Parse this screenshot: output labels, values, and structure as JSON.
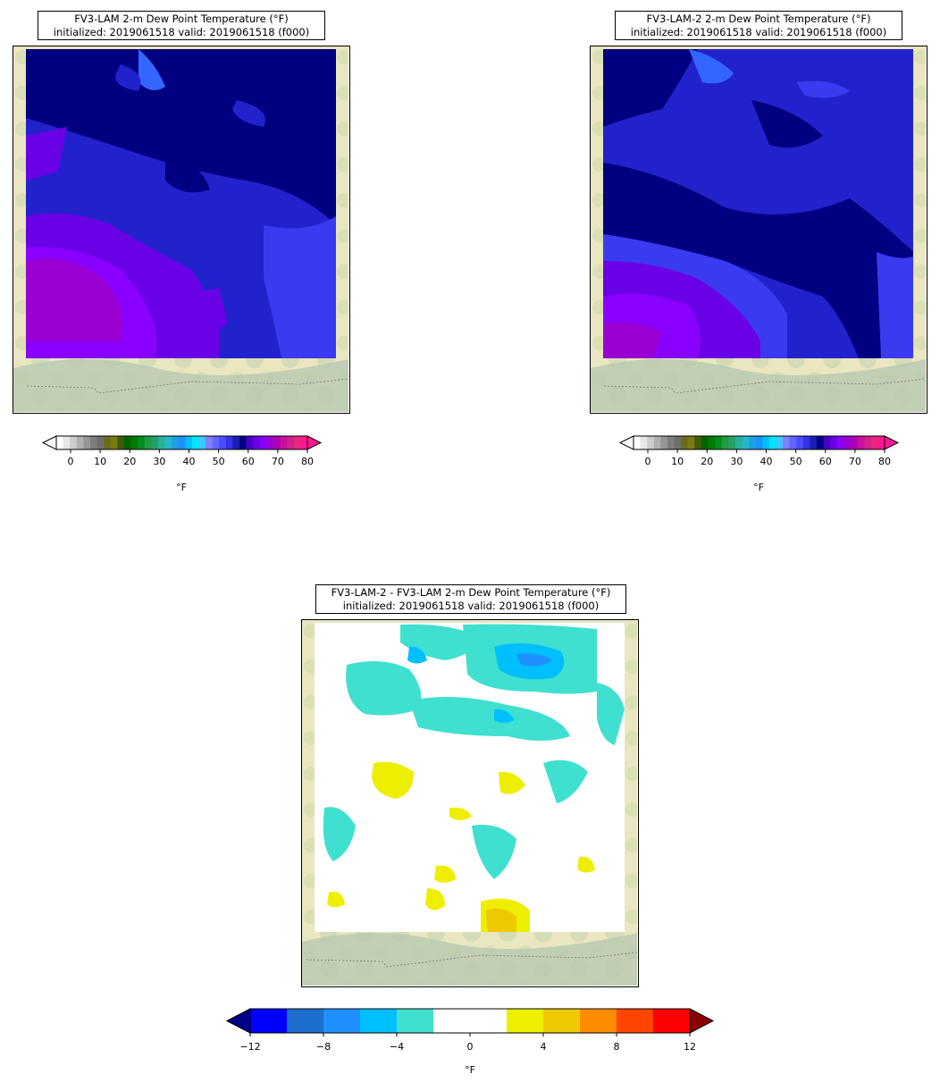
{
  "panels": [
    {
      "id": "lam",
      "title_line1": "FV3-LAM 2-m Dew Point Temperature (°F)",
      "title_line2": "initialized: 2019061518 valid: 2019061518 (f000)",
      "colorbar": {
        "ticks": [
          "0",
          "10",
          "20",
          "30",
          "40",
          "50",
          "60",
          "70",
          "80"
        ],
        "unit": "°F",
        "colors": [
          "#ffffff",
          "#e6e6e6",
          "#cccccc",
          "#b0b0b0",
          "#969696",
          "#7d7d7d",
          "#6e6e6e",
          "#6b6b1a",
          "#7a7a10",
          "#3e5b0b",
          "#006400",
          "#007a00",
          "#008c1e",
          "#1f9a3c",
          "#26a06a",
          "#2ab09a",
          "#25b8c8",
          "#1ea0e6",
          "#1e90ff",
          "#00bfff",
          "#00e5ff",
          "#3cc8ff",
          "#8080ff",
          "#6464ff",
          "#4b4bff",
          "#3232e6",
          "#1e1eb4",
          "#000080",
          "#4b00c8",
          "#6a00e6",
          "#8a00ff",
          "#9b00d2",
          "#b000b4",
          "#c8109b",
          "#d2208c",
          "#e6287a",
          "#ff1493"
        ]
      },
      "fields": {
        "description_fill": "dew point field",
        "colors": {
          "navy": "#000080",
          "blue": "#2222cc",
          "royal": "#3a3af0",
          "violet": "#6a00e6",
          "purple": "#8a00ff",
          "magenta": "#9b00d2",
          "lightblue": "#3366ff"
        }
      }
    },
    {
      "id": "lam2",
      "title_line1": "FV3-LAM-2 2-m Dew Point Temperature (°F)",
      "title_line2": "initialized: 2019061518 valid: 2019061518 (f000)",
      "colorbar": {
        "ticks": [
          "0",
          "10",
          "20",
          "30",
          "40",
          "50",
          "60",
          "70",
          "80"
        ],
        "unit": "°F"
      }
    },
    {
      "id": "diff",
      "title_line1": "FV3-LAM-2 - FV3-LAM 2-m Dew Point Temperature (°F)",
      "title_line2": "initialized: 2019061518 valid: 2019061518 (f000)",
      "colorbar": {
        "ticks": [
          "−12",
          "−8",
          "−4",
          "0",
          "4",
          "8",
          "12"
        ],
        "unit": "°F",
        "colors": [
          "#0000ff",
          "#1e6ecd",
          "#1e90ff",
          "#00bfff",
          "#40e0d0",
          "#ffffff",
          "#ffffff",
          "#eeee00",
          "#eec900",
          "#ff8c00",
          "#ff4500",
          "#ff0000"
        ],
        "extend_low": "#00008b",
        "extend_high": "#8b0000"
      }
    }
  ]
}
